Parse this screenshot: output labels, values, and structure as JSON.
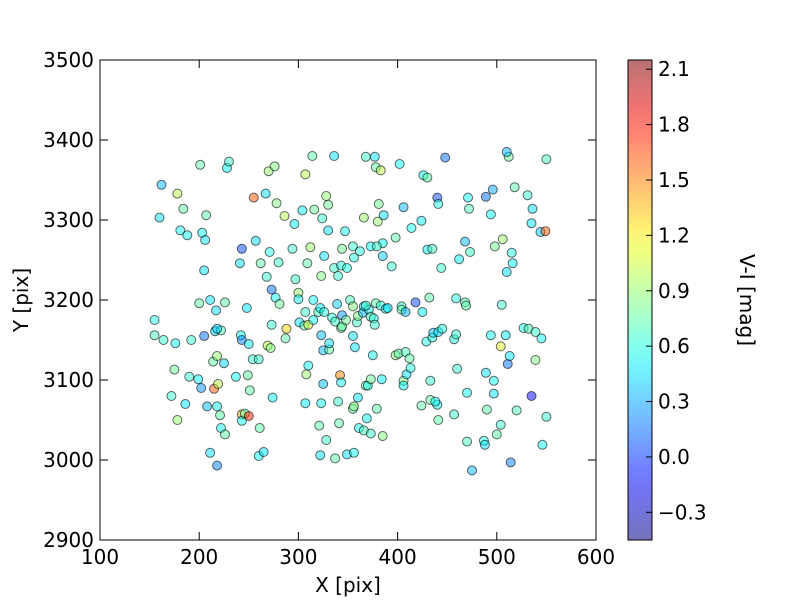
{
  "chart_data": {
    "type": "scatter",
    "title": "",
    "xlabel": "X [pix]",
    "ylabel": "Y [pix]",
    "xlim": [
      100,
      600
    ],
    "ylim": [
      2900,
      3500
    ],
    "xticks": [
      100,
      200,
      300,
      400,
      500,
      600
    ],
    "yticks": [
      2900,
      3000,
      3100,
      3200,
      3300,
      3400,
      3500
    ],
    "grid": false,
    "colorbar": {
      "label": "V-I [mag]",
      "range": [
        -0.45,
        2.15
      ],
      "ticks": [
        -0.3,
        0.0,
        0.3,
        0.6,
        0.9,
        1.2,
        1.5,
        1.8,
        2.1
      ],
      "tick_labels": [
        "−0.3",
        "0.0",
        "0.3",
        "0.6",
        "0.9",
        "1.2",
        "1.5",
        "1.8",
        "2.1"
      ],
      "colormap": "jet"
    },
    "marker_alpha": 0.5,
    "points": [
      [
        162,
        3344,
        0.35
      ],
      [
        160,
        3303,
        0.45
      ],
      [
        178,
        3333,
        1.0
      ],
      [
        184,
        3314,
        0.75
      ],
      [
        181,
        3287,
        0.55
      ],
      [
        188,
        3281,
        0.55
      ],
      [
        201,
        3369,
        0.75
      ],
      [
        203,
        3284,
        0.55
      ],
      [
        206,
        3275,
        0.45
      ],
      [
        207,
        3306,
        0.75
      ],
      [
        205,
        3237,
        0.45
      ],
      [
        228,
        3365,
        0.5
      ],
      [
        230,
        3373,
        0.65
      ],
      [
        241,
        3246,
        0.45
      ],
      [
        243,
        3264,
        0.05
      ],
      [
        255,
        3328,
        1.6
      ],
      [
        257,
        3274,
        0.45
      ],
      [
        262,
        3246,
        0.75
      ],
      [
        267,
        3333,
        0.45
      ],
      [
        270,
        3361,
        0.9
      ],
      [
        276,
        3367,
        0.85
      ],
      [
        278,
        3321,
        0.85
      ],
      [
        271,
        3260,
        0.6
      ],
      [
        268,
        3229,
        0.65
      ],
      [
        273,
        3213,
        0.15
      ],
      [
        277,
        3203,
        0.55
      ],
      [
        280,
        3247,
        0.65
      ],
      [
        286,
        3305,
        1.0
      ],
      [
        296,
        3295,
        0.5
      ],
      [
        294,
        3264,
        0.65
      ],
      [
        297,
        3226,
        0.65
      ],
      [
        300,
        3209,
        0.9
      ],
      [
        304,
        3312,
        0.5
      ],
      [
        307,
        3357,
        1.0
      ],
      [
        314,
        3380,
        0.75
      ],
      [
        316,
        3313,
        0.8
      ],
      [
        324,
        3302,
        0.65
      ],
      [
        328,
        3330,
        0.9
      ],
      [
        330,
        3319,
        0.8
      ],
      [
        336,
        3380,
        0.45
      ],
      [
        330,
        3287,
        0.45
      ],
      [
        323,
        3230,
        0.85
      ],
      [
        326,
        3255,
        0.45
      ],
      [
        312,
        3266,
        0.9
      ],
      [
        309,
        3246,
        0.75
      ],
      [
        347,
        3286,
        0.55
      ],
      [
        344,
        3264,
        0.8
      ],
      [
        336,
        3240,
        0.65
      ],
      [
        340,
        3230,
        0.65
      ],
      [
        343,
        3243,
        0.6
      ],
      [
        349,
        3240,
        0.6
      ],
      [
        355,
        3267,
        0.65
      ],
      [
        356,
        3253,
        0.6
      ],
      [
        362,
        3261,
        0.6
      ],
      [
        366,
        3303,
        0.9
      ],
      [
        368,
        3379,
        0.65
      ],
      [
        377,
        3379,
        0.45
      ],
      [
        378,
        3366,
        0.75
      ],
      [
        383,
        3362,
        1.0
      ],
      [
        381,
        3320,
        0.8
      ],
      [
        380,
        3298,
        0.9
      ],
      [
        386,
        3306,
        0.45
      ],
      [
        385,
        3271,
        0.55
      ],
      [
        373,
        3267,
        0.55
      ],
      [
        379,
        3267,
        0.65
      ],
      [
        385,
        3255,
        0.4
      ],
      [
        398,
        3278,
        0.75
      ],
      [
        394,
        3242,
        0.65
      ],
      [
        402,
        3370,
        0.55
      ],
      [
        406,
        3316,
        0.35
      ],
      [
        414,
        3290,
        0.55
      ],
      [
        424,
        3299,
        0.5
      ],
      [
        426,
        3356,
        0.55
      ],
      [
        430,
        3353,
        0.75
      ],
      [
        440,
        3328,
        0.05
      ],
      [
        441,
        3320,
        0.6
      ],
      [
        448,
        3378,
        0.15
      ],
      [
        430,
        3263,
        0.5
      ],
      [
        435,
        3264,
        0.7
      ],
      [
        444,
        3240,
        0.65
      ],
      [
        462,
        3251,
        0.5
      ],
      [
        471,
        3328,
        0.55
      ],
      [
        472,
        3314,
        0.7
      ],
      [
        468,
        3273,
        0.35
      ],
      [
        473,
        3260,
        0.65
      ],
      [
        489,
        3329,
        0.15
      ],
      [
        496,
        3338,
        0.3
      ],
      [
        494,
        3307,
        0.55
      ],
      [
        498,
        3267,
        0.8
      ],
      [
        506,
        3276,
        0.9
      ],
      [
        512,
        3379,
        0.8
      ],
      [
        510,
        3385,
        0.35
      ],
      [
        518,
        3341,
        0.75
      ],
      [
        515,
        3259,
        0.6
      ],
      [
        516,
        3246,
        0.5
      ],
      [
        510,
        3235,
        0.45
      ],
      [
        531,
        3331,
        0.65
      ],
      [
        535,
        3296,
        0.45
      ],
      [
        536,
        3314,
        0.45
      ],
      [
        544,
        3285,
        0.4
      ],
      [
        549,
        3286,
        1.6
      ],
      [
        550,
        3376,
        0.7
      ],
      [
        155,
        3175,
        0.6
      ],
      [
        155,
        3156,
        0.7
      ],
      [
        164,
        3150,
        0.65
      ],
      [
        176,
        3146,
        0.55
      ],
      [
        192,
        3150,
        0.65
      ],
      [
        200,
        3196,
        0.75
      ],
      [
        205,
        3155,
        0.15
      ],
      [
        211,
        3200,
        0.45
      ],
      [
        217,
        3187,
        0.45
      ],
      [
        216,
        3161,
        0.45
      ],
      [
        222,
        3162,
        0.7
      ],
      [
        226,
        3197,
        0.75
      ],
      [
        218,
        3164,
        0.4
      ],
      [
        214,
        3123,
        0.75
      ],
      [
        218,
        3130,
        0.9
      ],
      [
        225,
        3121,
        0.4
      ],
      [
        242,
        3156,
        0.55
      ],
      [
        243,
        3150,
        0.2
      ],
      [
        248,
        3190,
        0.45
      ],
      [
        250,
        3145,
        0.5
      ],
      [
        254,
        3126,
        0.65
      ],
      [
        260,
        3126,
        0.65
      ],
      [
        269,
        3143,
        1.0
      ],
      [
        272,
        3140,
        0.85
      ],
      [
        273,
        3169,
        0.65
      ],
      [
        288,
        3164,
        1.3
      ],
      [
        287,
        3152,
        0.75
      ],
      [
        281,
        3195,
        0.8
      ],
      [
        300,
        3201,
        0.55
      ],
      [
        307,
        3185,
        0.65
      ],
      [
        301,
        3172,
        0.45
      ],
      [
        306,
        3168,
        0.7
      ],
      [
        310,
        3169,
        1.05
      ],
      [
        315,
        3200,
        0.55
      ],
      [
        315,
        3175,
        0.55
      ],
      [
        320,
        3185,
        0.65
      ],
      [
        322,
        3190,
        0.5
      ],
      [
        326,
        3185,
        0.6
      ],
      [
        323,
        3156,
        0.35
      ],
      [
        325,
        3137,
        0.35
      ],
      [
        331,
        3138,
        0.75
      ],
      [
        331,
        3146,
        0.45
      ],
      [
        334,
        3178,
        0.6
      ],
      [
        339,
        3195,
        0.4
      ],
      [
        337,
        3173,
        0.65
      ],
      [
        343,
        3165,
        0.8
      ],
      [
        344,
        3167,
        0.75
      ],
      [
        344,
        3181,
        0.25
      ],
      [
        348,
        3175,
        0.8
      ],
      [
        352,
        3200,
        0.7
      ],
      [
        355,
        3192,
        0.85
      ],
      [
        355,
        3155,
        0.45
      ],
      [
        357,
        3141,
        0.45
      ],
      [
        359,
        3172,
        0.65
      ],
      [
        360,
        3180,
        0.85
      ],
      [
        365,
        3184,
        0.35
      ],
      [
        366,
        3192,
        0.45
      ],
      [
        371,
        3188,
        0.55
      ],
      [
        368,
        3193,
        0.65
      ],
      [
        373,
        3179,
        0.7
      ],
      [
        376,
        3177,
        0.6
      ],
      [
        375,
        3131,
        0.55
      ],
      [
        378,
        3196,
        0.75
      ],
      [
        377,
        3169,
        0.65
      ],
      [
        383,
        3193,
        0.6
      ],
      [
        388,
        3189,
        0.55
      ],
      [
        390,
        3190,
        0.45
      ],
      [
        398,
        3131,
        0.85
      ],
      [
        401,
        3133,
        0.75
      ],
      [
        404,
        3192,
        0.65
      ],
      [
        404,
        3188,
        0.75
      ],
      [
        408,
        3185,
        0.35
      ],
      [
        408,
        3135,
        0.7
      ],
      [
        412,
        3127,
        0.75
      ],
      [
        418,
        3197,
        0.05
      ],
      [
        425,
        3185,
        0.5
      ],
      [
        429,
        3148,
        0.6
      ],
      [
        432,
        3203,
        0.75
      ],
      [
        435,
        3153,
        0.6
      ],
      [
        436,
        3159,
        0.4
      ],
      [
        441,
        3160,
        0.45
      ],
      [
        445,
        3164,
        0.6
      ],
      [
        457,
        3151,
        0.6
      ],
      [
        459,
        3157,
        0.65
      ],
      [
        459,
        3202,
        0.6
      ],
      [
        468,
        3197,
        0.7
      ],
      [
        469,
        3193,
        0.75
      ],
      [
        494,
        3156,
        0.55
      ],
      [
        504,
        3142,
        1.1
      ],
      [
        505,
        3194,
        0.65
      ],
      [
        509,
        3156,
        0.5
      ],
      [
        511,
        3120,
        0.15
      ],
      [
        513,
        3130,
        0.45
      ],
      [
        527,
        3165,
        0.6
      ],
      [
        532,
        3164,
        0.7
      ],
      [
        539,
        3160,
        0.65
      ],
      [
        539,
        3125,
        0.85
      ],
      [
        545,
        3152,
        0.55
      ],
      [
        175,
        3113,
        0.8
      ],
      [
        172,
        3080,
        0.65
      ],
      [
        178,
        3050,
        0.9
      ],
      [
        186,
        3070,
        0.45
      ],
      [
        190,
        3104,
        0.65
      ],
      [
        199,
        3101,
        0.5
      ],
      [
        202,
        3090,
        0.25
      ],
      [
        208,
        3067,
        0.35
      ],
      [
        211,
        3009,
        0.45
      ],
      [
        215,
        3089,
        1.6
      ],
      [
        219,
        3095,
        1.0
      ],
      [
        218,
        2993,
        0.2
      ],
      [
        218,
        3067,
        0.55
      ],
      [
        221,
        3056,
        0.75
      ],
      [
        222,
        3040,
        0.55
      ],
      [
        226,
        3032,
        0.75
      ],
      [
        237,
        3104,
        0.55
      ],
      [
        243,
        3057,
        1.4
      ],
      [
        243,
        3049,
        0.55
      ],
      [
        246,
        3058,
        0.75
      ],
      [
        250,
        3055,
        1.75
      ],
      [
        249,
        3106,
        0.75
      ],
      [
        251,
        3087,
        0.75
      ],
      [
        261,
        3040,
        0.75
      ],
      [
        260,
        3005,
        0.55
      ],
      [
        265,
        3010,
        0.45
      ],
      [
        274,
        3078,
        0.5
      ],
      [
        307,
        3071,
        0.5
      ],
      [
        308,
        3107,
        0.9
      ],
      [
        310,
        3118,
        0.55
      ],
      [
        321,
        3043,
        0.75
      ],
      [
        323,
        3071,
        0.55
      ],
      [
        322,
        3006,
        0.45
      ],
      [
        325,
        3095,
        0.35
      ],
      [
        328,
        3025,
        0.65
      ],
      [
        337,
        3002,
        0.75
      ],
      [
        340,
        3073,
        0.65
      ],
      [
        341,
        3046,
        0.75
      ],
      [
        342,
        3106,
        1.5
      ],
      [
        343,
        3097,
        0.55
      ],
      [
        349,
        3007,
        0.45
      ],
      [
        355,
        3064,
        0.75
      ],
      [
        356,
        3009,
        0.55
      ],
      [
        356,
        3067,
        0.85
      ],
      [
        360,
        3078,
        0.45
      ],
      [
        361,
        3040,
        0.55
      ],
      [
        366,
        3037,
        0.7
      ],
      [
        368,
        3093,
        0.7
      ],
      [
        370,
        3093,
        0.6
      ],
      [
        373,
        3101,
        0.8
      ],
      [
        369,
        3052,
        0.55
      ],
      [
        373,
        3033,
        0.65
      ],
      [
        379,
        3064,
        0.75
      ],
      [
        385,
        3030,
        0.85
      ],
      [
        384,
        3101,
        0.5
      ],
      [
        406,
        3099,
        0.85
      ],
      [
        406,
        3093,
        0.55
      ],
      [
        409,
        3107,
        0.45
      ],
      [
        413,
        3115,
        0.6
      ],
      [
        424,
        3068,
        0.75
      ],
      [
        433,
        3099,
        0.65
      ],
      [
        433,
        3075,
        0.75
      ],
      [
        440,
        3069,
        0.55
      ],
      [
        438,
        3073,
        0.55
      ],
      [
        441,
        3050,
        0.75
      ],
      [
        457,
        3057,
        0.65
      ],
      [
        460,
        3114,
        0.65
      ],
      [
        470,
        3084,
        0.55
      ],
      [
        470,
        3023,
        0.7
      ],
      [
        475,
        2987,
        0.35
      ],
      [
        487,
        3024,
        0.6
      ],
      [
        488,
        3019,
        0.45
      ],
      [
        489,
        3109,
        0.45
      ],
      [
        490,
        3063,
        0.75
      ],
      [
        497,
        3099,
        0.55
      ],
      [
        497,
        3083,
        0.45
      ],
      [
        500,
        3032,
        0.75
      ],
      [
        504,
        3044,
        0.65
      ],
      [
        514,
        2997,
        0.2
      ],
      [
        520,
        3062,
        0.7
      ],
      [
        535,
        3080,
        -0.15
      ],
      [
        550,
        3054,
        0.65
      ],
      [
        546,
        3019,
        0.55
      ]
    ]
  }
}
